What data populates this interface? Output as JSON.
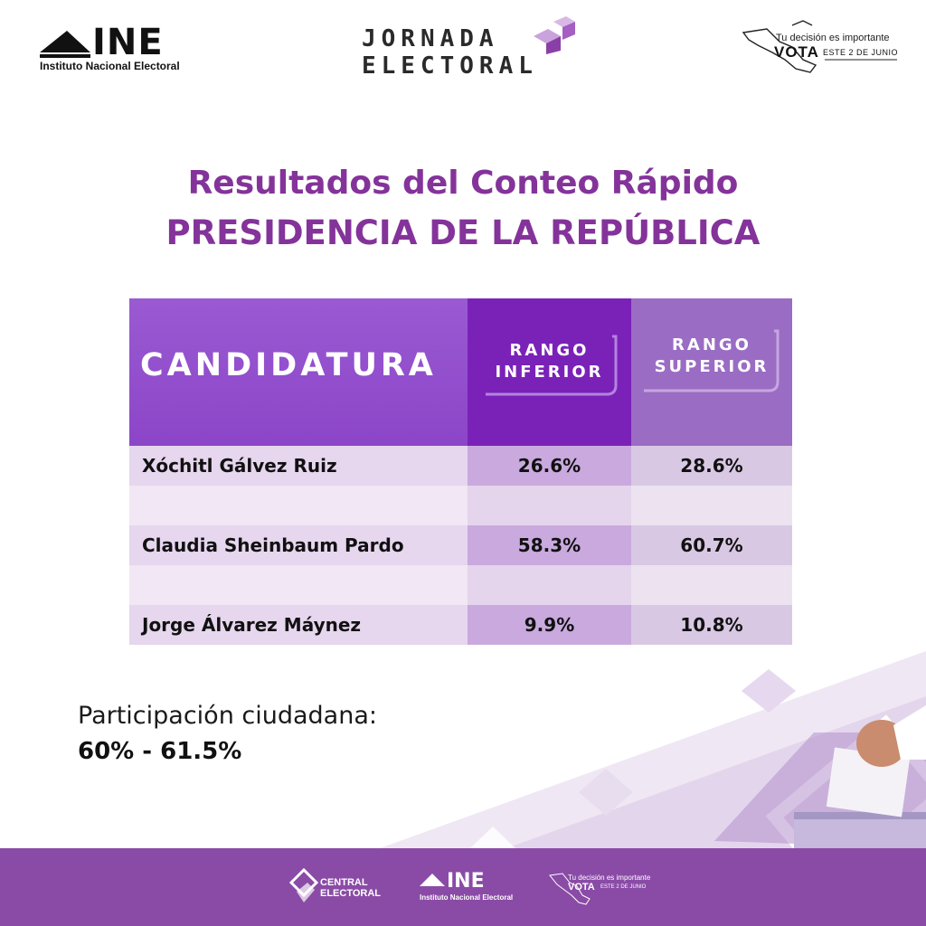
{
  "header": {
    "ine": {
      "name": "INE",
      "subtitle": "Instituto Nacional Electoral"
    },
    "jornada": {
      "line1": "JORNADA",
      "line2": "ELECTORAL"
    },
    "vota": {
      "tagline": "Tu decisión es importante",
      "vote_word": "VOTA",
      "date": "ESTE 2 DE JUNIO"
    }
  },
  "title": {
    "line1": "Resultados del Conteo Rápido",
    "line2": "PRESIDENCIA DE LA REPÚBLICA"
  },
  "table": {
    "headers": {
      "candidate": "CANDIDATURA",
      "lower_1": "RANGO",
      "lower_2": "INFERIOR",
      "upper_1": "RANGO",
      "upper_2": "SUPERIOR"
    },
    "rows": [
      {
        "name": "Xóchitl Gálvez Ruiz",
        "lower": "26.6%",
        "upper": "28.6%"
      },
      {
        "name": "Claudia Sheinbaum Pardo",
        "lower": "58.3%",
        "upper": "60.7%"
      },
      {
        "name": "Jorge Álvarez Máynez",
        "lower": "9.9%",
        "upper": "10.8%"
      }
    ]
  },
  "participation": {
    "label": "Participación ciudadana:",
    "value": "60% - 61.5%"
  },
  "footer": {
    "central": {
      "line1": "CENTRAL",
      "line2": "ELECTORAL"
    },
    "ine": {
      "name": "INE",
      "subtitle": "Instituto Nacional Electoral"
    },
    "vota": {
      "tagline": "Tu decisión es importante",
      "vote_word": "VOTA",
      "date": "ESTE 2 DE JUNIO"
    }
  },
  "colors": {
    "title": "#84339a",
    "header_candidate": "#8c45c8",
    "header_lower": "#7a22b8",
    "header_upper": "#9b6cc4",
    "footer": "#8a4ba6"
  }
}
